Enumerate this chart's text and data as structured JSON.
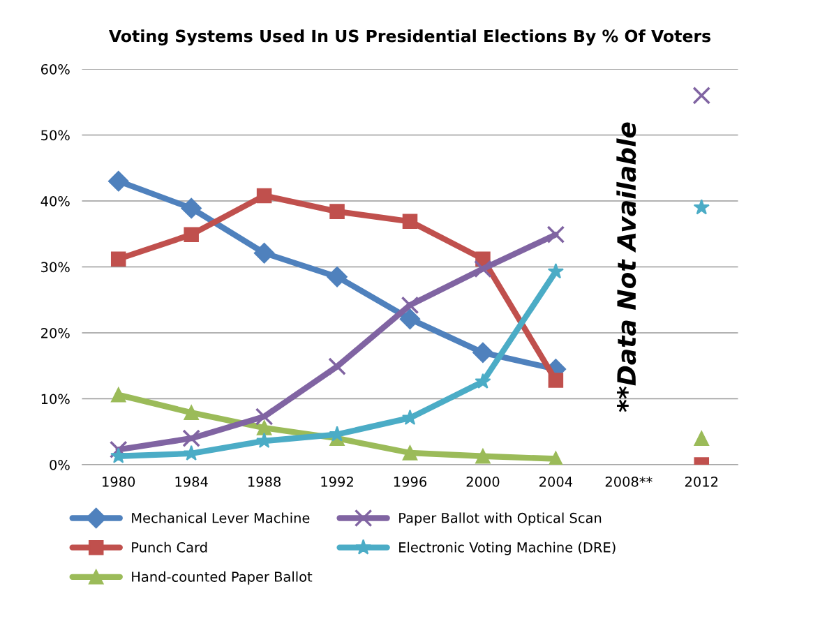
{
  "chart_data": {
    "type": "line",
    "title": "Voting Systems Used In US Presidential Elections By % Of Voters",
    "categories": [
      "1980",
      "1984",
      "1988",
      "1992",
      "1996",
      "2000",
      "2004",
      "2008**",
      "2012"
    ],
    "series": [
      {
        "name": "Mechanical Lever Machine",
        "color": "#4f81bd",
        "marker": "diamond",
        "values": [
          43.0,
          38.9,
          32.1,
          28.5,
          22.1,
          17.0,
          14.5,
          null,
          null
        ]
      },
      {
        "name": "Punch Card",
        "color": "#c0504d",
        "marker": "square",
        "values": [
          31.2,
          34.9,
          40.8,
          38.4,
          36.9,
          31.2,
          12.8,
          null,
          0
        ]
      },
      {
        "name": "Hand-counted Paper Ballot",
        "color": "#9bbb59",
        "marker": "triangle",
        "values": [
          10.6,
          7.9,
          5.6,
          4.0,
          1.8,
          1.3,
          0.9,
          null,
          4.0
        ]
      },
      {
        "name": "Paper Ballot with Optical Scan",
        "color": "#8064a2",
        "marker": "cross",
        "values": [
          2.3,
          4.0,
          7.3,
          14.9,
          24.2,
          29.7,
          34.9,
          null,
          56
        ]
      },
      {
        "name": "Electronic Voting Machine (DRE)",
        "color": "#4bacc6",
        "marker": "star",
        "values": [
          1.3,
          1.7,
          3.6,
          4.6,
          7.1,
          12.6,
          29.3,
          null,
          39
        ]
      }
    ],
    "ylim": [
      0,
      60
    ],
    "yticks": [
      {
        "value": 0,
        "label": "0%"
      },
      {
        "value": 10,
        "label": "10%"
      },
      {
        "value": 20,
        "label": "20%"
      },
      {
        "value": 30,
        "label": "30%"
      },
      {
        "value": 40,
        "label": "40%"
      },
      {
        "value": 50,
        "label": "50%"
      },
      {
        "value": 60,
        "label": "60%"
      }
    ],
    "grid": "y",
    "legend": "bottom",
    "annotations": [
      "**Data Not Available"
    ]
  }
}
